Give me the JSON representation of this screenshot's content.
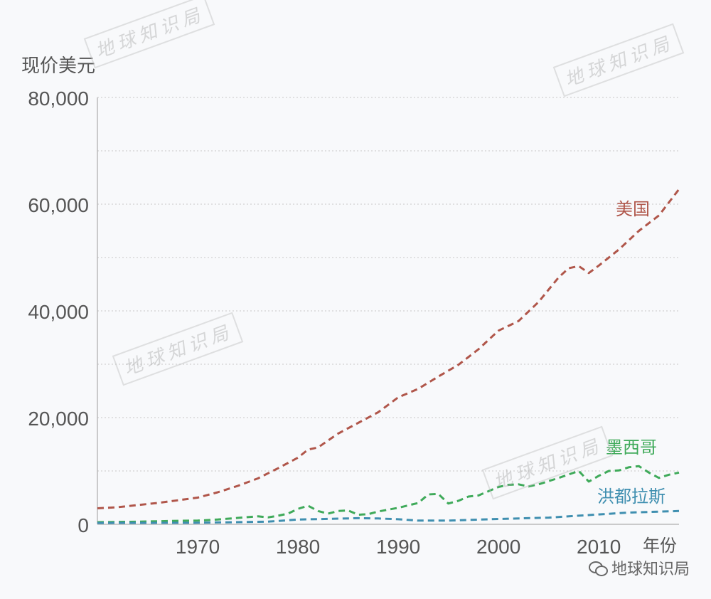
{
  "y_unit_label": "现价美元",
  "brand": "地球知识局",
  "watermark_text": "地球知识局",
  "colors": {
    "usa": "#b0564a",
    "mexico": "#3faa5a",
    "honduras": "#3f8fb0",
    "axis": "#bbbbbb",
    "grid": "#c7c7c7",
    "tick_text": "#555555"
  },
  "chart_data": {
    "type": "line",
    "xlabel": "年份",
    "ylabel": "现价美元",
    "x_ticks": [
      1970,
      1980,
      1990,
      2000,
      2010
    ],
    "xlim": [
      1960,
      2018
    ],
    "ylim": [
      0,
      80000
    ],
    "y_ticks": [
      0,
      20000,
      40000,
      60000,
      80000
    ],
    "y_tick_labels": [
      "0",
      "20,000",
      "40,000",
      "60,000",
      "80,000"
    ],
    "grid": "horizontal dotted",
    "line_style": "dashed",
    "series": [
      {
        "name": "美国",
        "color_key": "usa",
        "points": [
          [
            1960,
            3000
          ],
          [
            1962,
            3200
          ],
          [
            1964,
            3600
          ],
          [
            1966,
            4000
          ],
          [
            1968,
            4500
          ],
          [
            1970,
            5000
          ],
          [
            1972,
            6000
          ],
          [
            1974,
            7200
          ],
          [
            1976,
            8600
          ],
          [
            1978,
            10500
          ],
          [
            1980,
            12500
          ],
          [
            1981,
            14000
          ],
          [
            1982,
            14400
          ],
          [
            1984,
            17000
          ],
          [
            1986,
            19000
          ],
          [
            1988,
            21000
          ],
          [
            1990,
            23800
          ],
          [
            1992,
            25400
          ],
          [
            1994,
            27700
          ],
          [
            1996,
            29900
          ],
          [
            1998,
            32800
          ],
          [
            2000,
            36300
          ],
          [
            2002,
            38100
          ],
          [
            2004,
            41700
          ],
          [
            2006,
            46300
          ],
          [
            2007,
            48000
          ],
          [
            2008,
            48400
          ],
          [
            2009,
            47100
          ],
          [
            2010,
            48500
          ],
          [
            2012,
            51500
          ],
          [
            2014,
            55000
          ],
          [
            2016,
            57900
          ],
          [
            2018,
            62800
          ]
        ]
      },
      {
        "name": "墨西哥",
        "color_key": "mexico",
        "points": [
          [
            1960,
            400
          ],
          [
            1964,
            500
          ],
          [
            1968,
            650
          ],
          [
            1970,
            700
          ],
          [
            1972,
            900
          ],
          [
            1974,
            1200
          ],
          [
            1976,
            1500
          ],
          [
            1977,
            1300
          ],
          [
            1978,
            1600
          ],
          [
            1979,
            2000
          ],
          [
            1980,
            2900
          ],
          [
            1981,
            3500
          ],
          [
            1982,
            2500
          ],
          [
            1983,
            2000
          ],
          [
            1984,
            2500
          ],
          [
            1985,
            2600
          ],
          [
            1986,
            1800
          ],
          [
            1987,
            1900
          ],
          [
            1988,
            2400
          ],
          [
            1990,
            3100
          ],
          [
            1992,
            4000
          ],
          [
            1993,
            5600
          ],
          [
            1994,
            5700
          ],
          [
            1995,
            3900
          ],
          [
            1996,
            4400
          ],
          [
            1997,
            5200
          ],
          [
            1998,
            5400
          ],
          [
            2000,
            7000
          ],
          [
            2001,
            7400
          ],
          [
            2002,
            7500
          ],
          [
            2003,
            7100
          ],
          [
            2004,
            7500
          ],
          [
            2006,
            8700
          ],
          [
            2008,
            10000
          ],
          [
            2009,
            8000
          ],
          [
            2010,
            9100
          ],
          [
            2011,
            10000
          ],
          [
            2012,
            10100
          ],
          [
            2013,
            10700
          ],
          [
            2014,
            10900
          ],
          [
            2015,
            9700
          ],
          [
            2016,
            8700
          ],
          [
            2017,
            9300
          ],
          [
            2018,
            9700
          ]
        ]
      },
      {
        "name": "洪都拉斯",
        "color_key": "honduras",
        "points": [
          [
            1960,
            250
          ],
          [
            1970,
            300
          ],
          [
            1977,
            500
          ],
          [
            1980,
            900
          ],
          [
            1986,
            1150
          ],
          [
            1988,
            1100
          ],
          [
            1990,
            950
          ],
          [
            1992,
            700
          ],
          [
            1995,
            700
          ],
          [
            2000,
            1000
          ],
          [
            2005,
            1250
          ],
          [
            2010,
            1850
          ],
          [
            2013,
            2200
          ],
          [
            2018,
            2500
          ]
        ]
      }
    ]
  }
}
